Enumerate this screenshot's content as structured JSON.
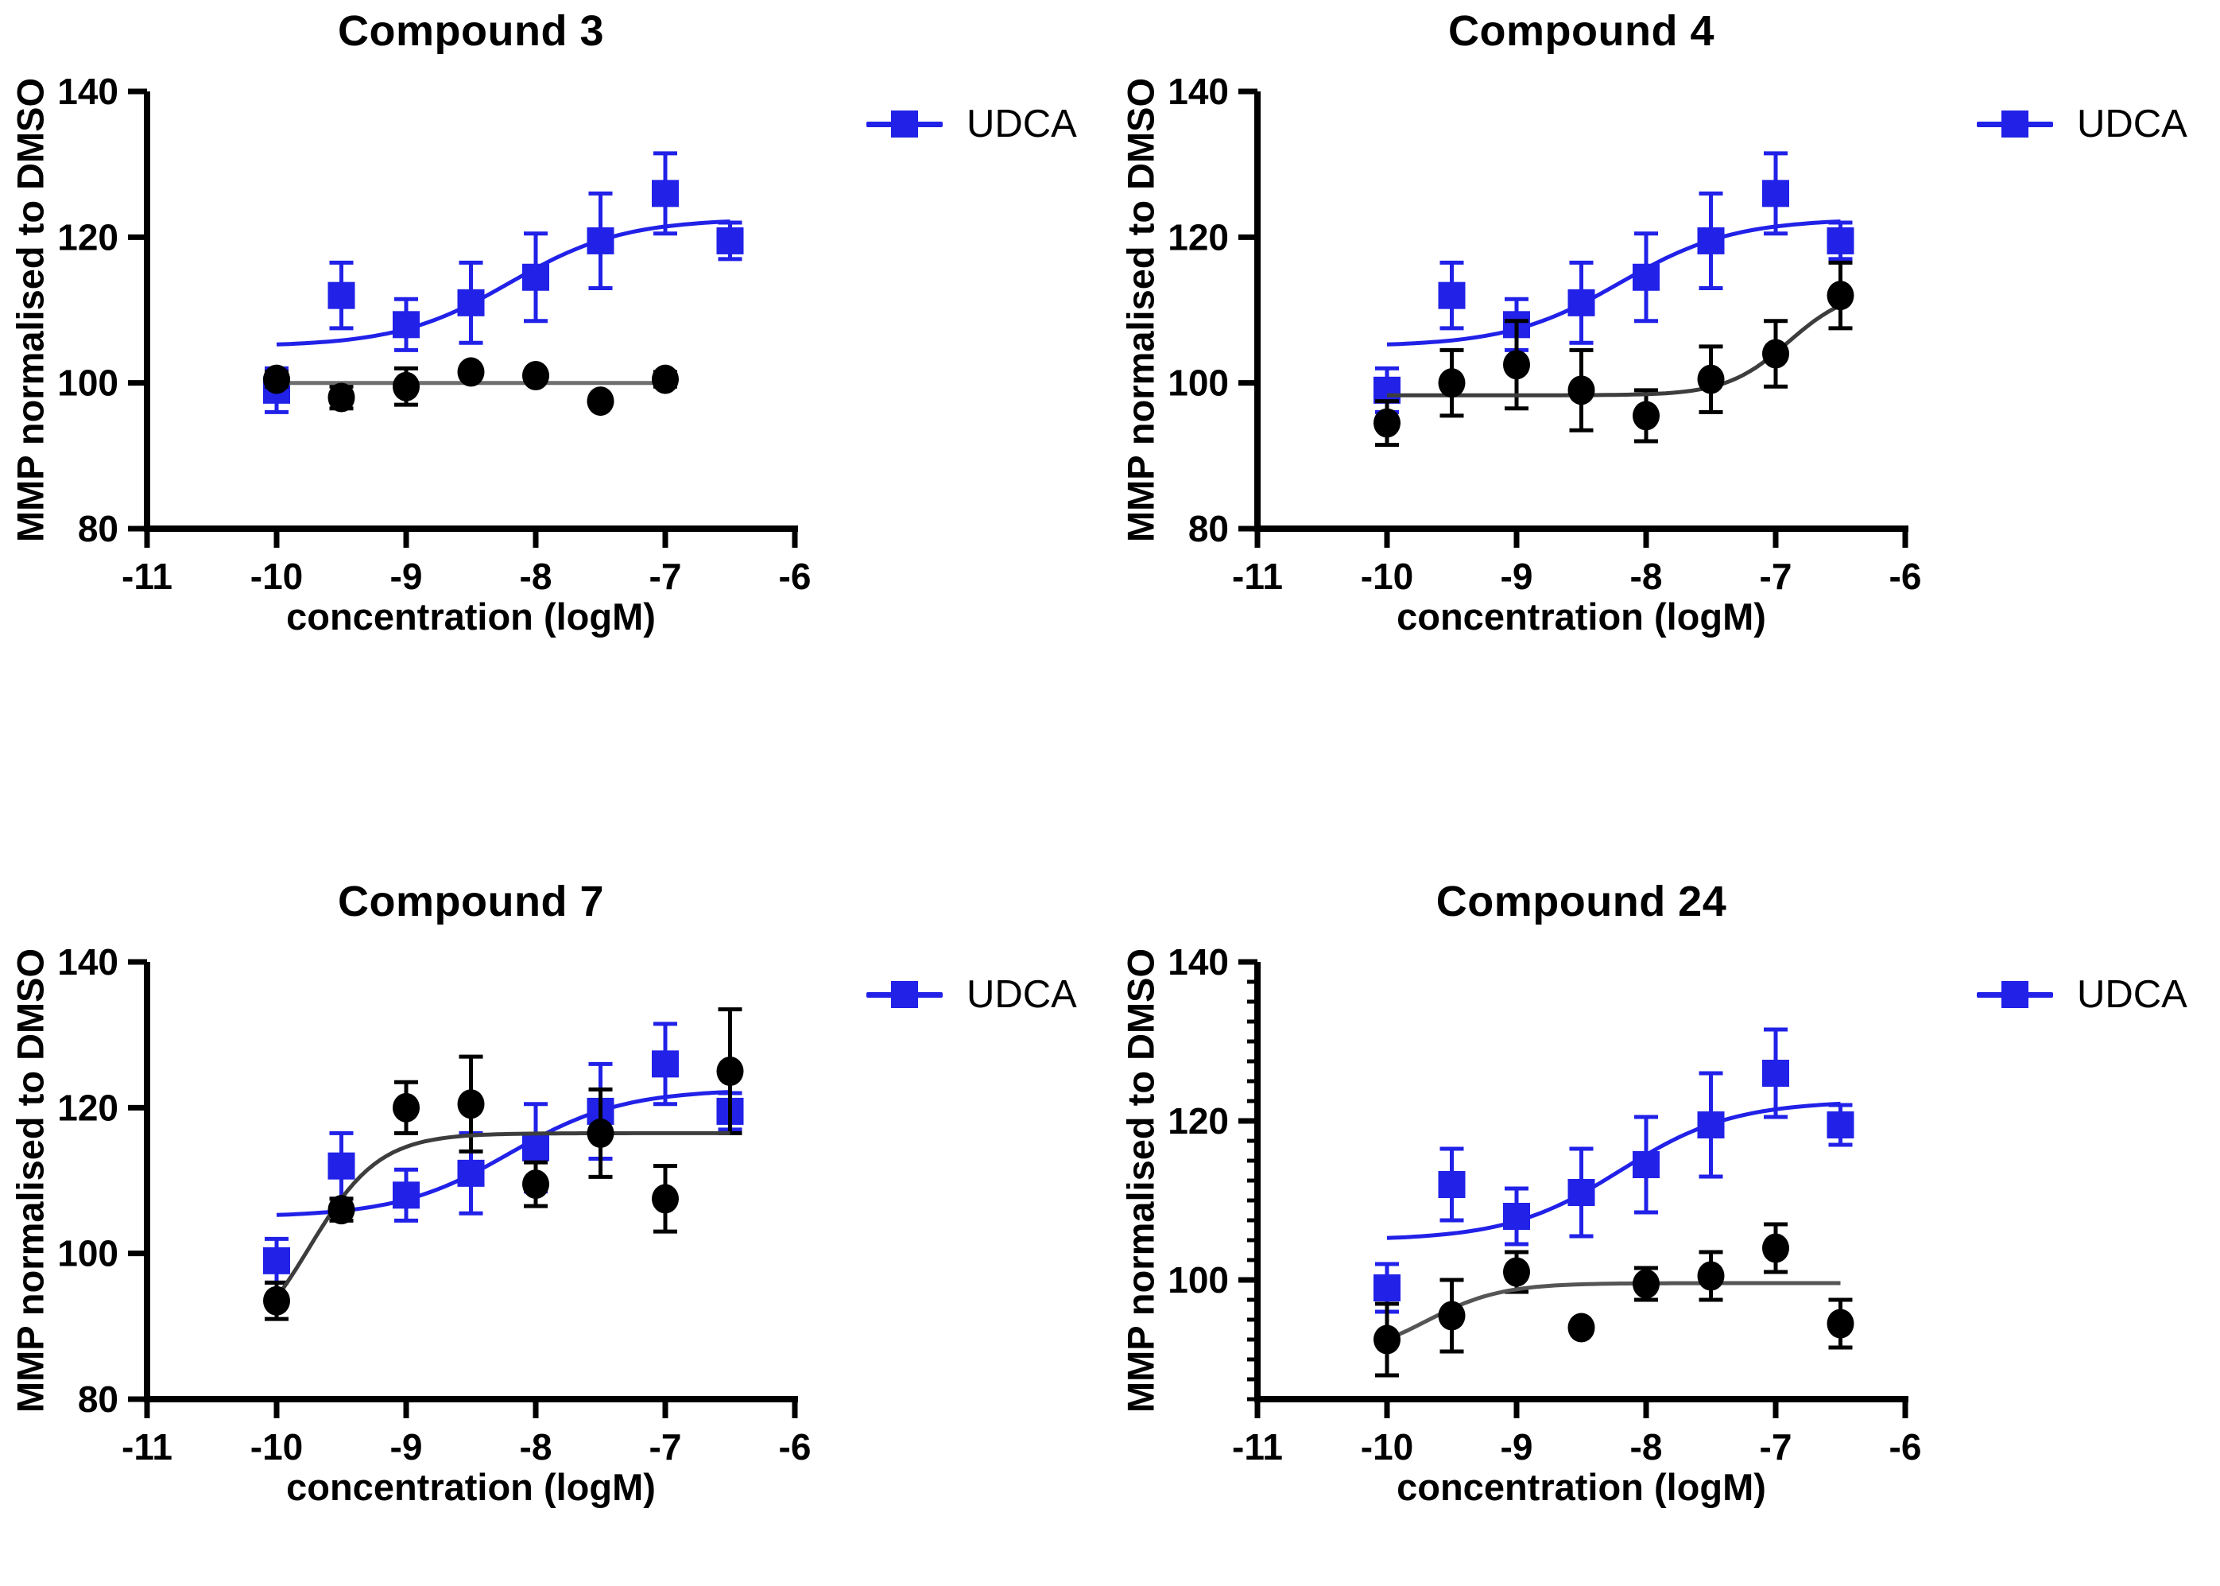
{
  "figure": {
    "background": "#ffffff",
    "legend_label": "UDCA",
    "colors": {
      "udca_blue": "#2121E8",
      "marker_black": "#000000",
      "axis_black": "#000000"
    }
  },
  "chart_data": [
    {
      "type": "scatter",
      "title": "Compound 3",
      "xlabel": "concentration (logM)",
      "ylabel": "MMP normalised to DMSO",
      "legend": "UDCA",
      "legend_position": "right-top",
      "grid": false,
      "xlim": [
        -11,
        -6
      ],
      "ylim": [
        80,
        140
      ],
      "x_ticks": [
        -11,
        -10,
        -9,
        -8,
        -7,
        -6
      ],
      "y_ticks": [
        80,
        100,
        120,
        140
      ],
      "y_minor_step": null,
      "series": [
        {
          "name": "UDCA",
          "marker": "square",
          "color": "#2121E8",
          "line_color": "#2121E8",
          "x": [
            -10,
            -9.5,
            -9,
            -8.5,
            -8,
            -7.5,
            -7,
            -6.5
          ],
          "y": [
            99,
            112,
            108,
            111,
            114.5,
            119.5,
            126,
            119.5
          ],
          "err": [
            3,
            4.5,
            3.5,
            5.5,
            6,
            6.5,
            5.5,
            2.5
          ],
          "fit": {
            "type": "4pl",
            "bottom": 105,
            "top": 122.5,
            "logec50": -8.2,
            "hill": 1.0,
            "range": [
              -10,
              -6.5
            ]
          }
        },
        {
          "name": "Compound 3",
          "marker": "circle",
          "color": "#000000",
          "line_color": "#6e6e6e",
          "x": [
            -10,
            -9.5,
            -9,
            -8.5,
            -8,
            -7.5,
            -7
          ],
          "y": [
            100.5,
            98,
            99.5,
            101.5,
            101,
            97.5,
            100.5
          ],
          "err": [
            1,
            1.5,
            2.5,
            0,
            0,
            0,
            1
          ],
          "fit": {
            "type": "flat",
            "level": 100,
            "range": [
              -10,
              -7
            ]
          }
        }
      ]
    },
    {
      "type": "scatter",
      "title": "Compound 4",
      "xlabel": "concentration (logM)",
      "ylabel": "MMP normalised to DMSO",
      "legend": "UDCA",
      "legend_position": "right-top",
      "grid": false,
      "xlim": [
        -11,
        -6
      ],
      "ylim": [
        80,
        140
      ],
      "x_ticks": [
        -11,
        -10,
        -9,
        -8,
        -7,
        -6
      ],
      "y_ticks": [
        80,
        100,
        120,
        140
      ],
      "y_minor_step": null,
      "series": [
        {
          "name": "UDCA",
          "marker": "square",
          "color": "#2121E8",
          "line_color": "#2121E8",
          "x": [
            -10,
            -9.5,
            -9,
            -8.5,
            -8,
            -7.5,
            -7,
            -6.5
          ],
          "y": [
            99,
            112,
            108,
            111,
            114.5,
            119.5,
            126,
            119.5
          ],
          "err": [
            3,
            4.5,
            3.5,
            5.5,
            6,
            6.5,
            5.5,
            2.5
          ],
          "fit": {
            "type": "4pl",
            "bottom": 105,
            "top": 122.5,
            "logec50": -8.2,
            "hill": 1.0,
            "range": [
              -10,
              -6.5
            ]
          }
        },
        {
          "name": "Compound 4",
          "marker": "circle",
          "color": "#000000",
          "line_color": "#3d3d3d",
          "x": [
            -10,
            -9.5,
            -9,
            -8.5,
            -8,
            -7.5,
            -7,
            -6.5
          ],
          "y": [
            94.5,
            100,
            102.5,
            99,
            95.5,
            100.5,
            104,
            112
          ],
          "err": [
            3,
            4.5,
            6,
            5.5,
            3.5,
            4.5,
            4.5,
            4.5
          ],
          "fit": {
            "type": "4pl",
            "bottom": 98.3,
            "top": 113,
            "logec50": -6.9,
            "hill": 1.8,
            "range": [
              -10,
              -6.5
            ]
          }
        }
      ]
    },
    {
      "type": "scatter",
      "title": "Compound 7",
      "xlabel": "concentration (logM)",
      "ylabel": "MMP normalised to DMSO",
      "legend": "UDCA",
      "legend_position": "right-top",
      "grid": false,
      "xlim": [
        -11,
        -6
      ],
      "ylim": [
        80,
        140
      ],
      "x_ticks": [
        -11,
        -10,
        -9,
        -8,
        -7,
        -6
      ],
      "y_ticks": [
        80,
        100,
        120,
        140
      ],
      "y_minor_step": null,
      "series": [
        {
          "name": "UDCA",
          "marker": "square",
          "color": "#2121E8",
          "line_color": "#2121E8",
          "x": [
            -10,
            -9.5,
            -9,
            -8.5,
            -8,
            -7.5,
            -7,
            -6.5
          ],
          "y": [
            99,
            112,
            108,
            111,
            114.5,
            119.5,
            126,
            119.5
          ],
          "err": [
            3,
            4.5,
            3.5,
            5.5,
            6,
            6.5,
            5.5,
            2.5
          ],
          "fit": {
            "type": "4pl",
            "bottom": 105,
            "top": 122.5,
            "logec50": -8.2,
            "hill": 1.0,
            "range": [
              -10,
              -6.5
            ]
          }
        },
        {
          "name": "Compound 7",
          "marker": "circle",
          "color": "#000000",
          "line_color": "#3d3d3d",
          "x": [
            -10,
            -9.5,
            -9,
            -8.5,
            -8,
            -7.5,
            -7,
            -6.5
          ],
          "y": [
            93.5,
            106,
            120,
            120.5,
            109.5,
            116.5,
            107.5,
            125
          ],
          "err": [
            2.5,
            1.5,
            3.5,
            6.5,
            3,
            6,
            4.5,
            8.5
          ],
          "fit": {
            "type": "4pl",
            "bottom": 85,
            "top": 116.5,
            "logec50": -9.75,
            "hill": 1.6,
            "range": [
              -10,
              -6.5
            ]
          }
        }
      ]
    },
    {
      "type": "scatter",
      "title": "Compound 24",
      "xlabel": "concentration (logM)",
      "ylabel": "MMP normalised to DMSO",
      "legend": "UDCA",
      "legend_position": "right-top",
      "grid": false,
      "xlim": [
        -11,
        -6
      ],
      "ylim": [
        85,
        140
      ],
      "x_ticks": [
        -11,
        -10,
        -9,
        -8,
        -7,
        -6
      ],
      "y_ticks": [
        100,
        120,
        140
      ],
      "y_minor_step": 2.5,
      "series": [
        {
          "name": "UDCA",
          "marker": "square",
          "color": "#2121E8",
          "line_color": "#2121E8",
          "x": [
            -10,
            -9.5,
            -9,
            -8.5,
            -8,
            -7.5,
            -7,
            -6.5
          ],
          "y": [
            99,
            112,
            108,
            111,
            114.5,
            119.5,
            126,
            119.5
          ],
          "err": [
            3,
            4.5,
            3.5,
            5.5,
            6,
            6.5,
            5.5,
            2.5
          ],
          "fit": {
            "type": "4pl",
            "bottom": 105,
            "top": 122.5,
            "logec50": -8.2,
            "hill": 1.0,
            "range": [
              -10,
              -6.5
            ]
          }
        },
        {
          "name": "Compound 24",
          "marker": "circle",
          "color": "#000000",
          "line_color": "#555555",
          "x": [
            -10,
            -9.5,
            -9,
            -8.5,
            -8,
            -7.5,
            -7,
            -6.5
          ],
          "y": [
            92.5,
            95.5,
            101,
            94,
            99.5,
            100.5,
            104,
            94.5
          ],
          "err": [
            4.5,
            4.5,
            2.5,
            0,
            2,
            3,
            3,
            3
          ],
          "fit": {
            "type": "4pl",
            "bottom": 90,
            "top": 99.6,
            "logec50": -9.7,
            "hill": 1.5,
            "range": [
              -10,
              -6.5
            ]
          }
        }
      ]
    }
  ]
}
